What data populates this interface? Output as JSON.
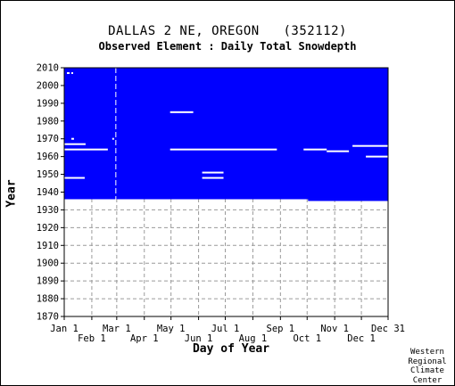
{
  "header": {
    "title": "DALLAS 2 NE, OREGON   (352112)",
    "subtitle": "Observed Element : Daily Total Snowdepth"
  },
  "credit": {
    "lines": [
      "Western",
      "Regional",
      "Climate",
      "Center"
    ]
  },
  "colors": {
    "fill": "#0000ff",
    "gap": "#ffffff",
    "grid": "#9a9a9a",
    "axis": "#000000"
  },
  "chart_data": {
    "type": "heatmap",
    "title": "DALLAS 2 NE, OREGON   (352112)",
    "subtitle": "Observed Element : Daily Total Snowdepth",
    "xlabel": "Day of Year",
    "ylabel": "Year",
    "xlim": [
      1,
      365
    ],
    "ylim": [
      1870,
      2010
    ],
    "grid": true,
    "x_ticks_top_row": [
      {
        "label": "Jan 1",
        "day": 1
      },
      {
        "label": "Mar 1",
        "day": 60
      },
      {
        "label": "May 1",
        "day": 121
      },
      {
        "label": "Jul 1",
        "day": 182
      },
      {
        "label": "Sep 1",
        "day": 244
      },
      {
        "label": "Nov 1",
        "day": 305
      },
      {
        "label": "Dec 31",
        "day": 365
      }
    ],
    "x_ticks_bottom_row": [
      {
        "label": "Feb 1",
        "day": 32
      },
      {
        "label": "Apr 1",
        "day": 91
      },
      {
        "label": "Jun 1",
        "day": 152
      },
      {
        "label": "Aug 1",
        "day": 213
      },
      {
        "label": "Oct 1",
        "day": 274
      },
      {
        "label": "Dec 1",
        "day": 335
      }
    ],
    "y_ticks": [
      1870,
      1880,
      1890,
      1900,
      1910,
      1920,
      1930,
      1940,
      1950,
      1960,
      1970,
      1980,
      1990,
      2000,
      2010
    ],
    "data_coverage_blocks": [
      {
        "day_start": 1,
        "day_end": 365,
        "year_start": 1936,
        "year_end": 2010
      },
      {
        "day_start": 275,
        "day_end": 365,
        "year_start": 1935,
        "year_end": 1936
      }
    ],
    "missing_segments": [
      {
        "year": 2007,
        "day_start": 4,
        "day_end": 7
      },
      {
        "year": 2007,
        "day_start": 9,
        "day_end": 11
      },
      {
        "year": 1967,
        "day_start": 1,
        "day_end": 25
      },
      {
        "year": 1964,
        "day_start": 1,
        "day_end": 50
      },
      {
        "year": 1948,
        "day_start": 1,
        "day_end": 24
      },
      {
        "year": 1970,
        "day_start": 9,
        "day_end": 12
      },
      {
        "year": 1970,
        "day_start": 55,
        "day_end": 57
      },
      {
        "year": 1985,
        "day_start": 120,
        "day_end": 146
      },
      {
        "year": 1964,
        "day_start": 120,
        "day_end": 240
      },
      {
        "year": 1951,
        "day_start": 156,
        "day_end": 180
      },
      {
        "year": 1948,
        "day_start": 156,
        "day_end": 180
      },
      {
        "year": 1964,
        "day_start": 270,
        "day_end": 296
      },
      {
        "year": 1963,
        "day_start": 296,
        "day_end": 321
      },
      {
        "year": 1966,
        "day_start": 325,
        "day_end": 365
      },
      {
        "year": 1960,
        "day_start": 340,
        "day_end": 365
      }
    ],
    "missing_column_days": [
      59
    ]
  }
}
